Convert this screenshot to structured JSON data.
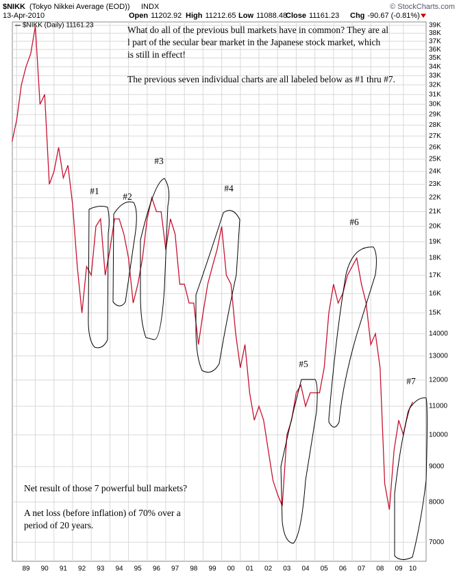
{
  "header": {
    "symbol": "$NIKK",
    "description": "(Tokyo Nikkei Average (EOD))",
    "exchange": "INDX",
    "date": "13-Apr-2010",
    "copyright": "© StockCharts.com",
    "quote": [
      {
        "label": "Open",
        "value": "11202.92"
      },
      {
        "label": "High",
        "value": "11212.65"
      },
      {
        "label": "Low",
        "value": "11088.48"
      },
      {
        "label": "Close",
        "value": "11161.23"
      },
      {
        "label": "Chg",
        "value": "-90.67 (-0.81%)"
      }
    ]
  },
  "chart_data": {
    "type": "line",
    "log_scale": true,
    "grid": true,
    "categories": [
      null,
      null,
      null,
      "89",
      null,
      null,
      null,
      "90",
      null,
      null,
      null,
      "91",
      null,
      null,
      null,
      "92",
      null,
      null,
      null,
      "93",
      null,
      null,
      null,
      "94",
      null,
      null,
      null,
      "95",
      null,
      null,
      null,
      "96",
      null,
      null,
      null,
      "97",
      null,
      null,
      null,
      "98",
      null,
      null,
      null,
      "99",
      null,
      null,
      null,
      "00",
      null,
      null,
      null,
      "01",
      null,
      null,
      null,
      "02",
      null,
      null,
      null,
      "03",
      null,
      null,
      null,
      "04",
      null,
      null,
      null,
      "05",
      null,
      null,
      null,
      "06",
      null,
      null,
      null,
      "07",
      null,
      null,
      null,
      "08",
      null,
      null,
      null,
      "09",
      null,
      null,
      "10"
    ],
    "series": [
      {
        "name": "$NIKK (Daily) 11161.23",
        "color": "#c8102e",
        "values": [
          26500,
          28500,
          32000,
          34000,
          35500,
          38900,
          30000,
          31000,
          23000,
          24000,
          26000,
          23500,
          24500,
          21500,
          17500,
          15000,
          17500,
          17000,
          20000,
          20500,
          17000,
          18500,
          20500,
          20500,
          19500,
          18000,
          15500,
          16500,
          18000,
          20500,
          22000,
          21000,
          21000,
          18500,
          20500,
          19500,
          16500,
          16500,
          15500,
          15500,
          13500,
          15000,
          16500,
          17500,
          18500,
          20000,
          17000,
          16500,
          14000,
          12500,
          13500,
          11500,
          10500,
          11000,
          10500,
          9500,
          8600,
          8200,
          7900,
          10000,
          10500,
          11500,
          11800,
          11000,
          11500,
          11500,
          11500,
          12500,
          15000,
          16500,
          15500,
          16000,
          17000,
          17500,
          18000,
          16500,
          15500,
          13500,
          14000,
          12500,
          8500,
          7800,
          9500,
          10500,
          10000,
          10800,
          11161.23
        ]
      }
    ],
    "ylim": [
      6570,
      39450
    ],
    "yticks": [
      7000,
      8000,
      9000,
      10000,
      11000,
      12000,
      13000,
      14000,
      {
        "value": 15000,
        "label": "15K"
      },
      {
        "value": 16000,
        "label": "16K"
      },
      {
        "value": 17000,
        "label": "17K"
      },
      {
        "value": 18000,
        "label": "18K"
      },
      {
        "value": 19000,
        "label": "19K"
      },
      {
        "value": 20000,
        "label": "20K"
      },
      {
        "value": 21000,
        "label": "21K"
      },
      {
        "value": 22000,
        "label": "22K"
      },
      {
        "value": 23000,
        "label": "23K"
      },
      {
        "value": 24000,
        "label": "24K"
      },
      {
        "value": 25000,
        "label": "25K"
      },
      {
        "value": 26000,
        "label": "26K"
      },
      {
        "value": 27000,
        "label": "27K"
      },
      {
        "value": 28000,
        "label": "28K"
      },
      {
        "value": 29000,
        "label": "29K"
      },
      {
        "value": 30000,
        "label": "30K"
      },
      {
        "value": 31000,
        "label": "31K"
      },
      {
        "value": 32000,
        "label": "32K"
      },
      {
        "value": 33000,
        "label": "33K"
      },
      {
        "value": 34000,
        "label": "34K"
      },
      {
        "value": 35000,
        "label": "35K"
      },
      {
        "value": 36000,
        "label": "36K"
      },
      {
        "value": 37000,
        "label": "37K"
      },
      {
        "value": 38000,
        "label": "38K"
      },
      {
        "value": 39000,
        "label": "39K"
      }
    ],
    "annotations": [
      "#1",
      "#2",
      "#3",
      "#4",
      "#5",
      "#6",
      "#7"
    ],
    "notes": [
      [
        "What do all of the previous bull markets have in common? They are al",
        "l part of the secular bear market in the Japanese stock market, which",
        "is still in effect!",
        "The previous seven individual charts are all labeled below as #1 thru #7."
      ],
      [
        "Net result of those 7 powerful bull markets?",
        "A net loss (before inflation) of 70% over a",
        "period of 20 years."
      ]
    ]
  }
}
